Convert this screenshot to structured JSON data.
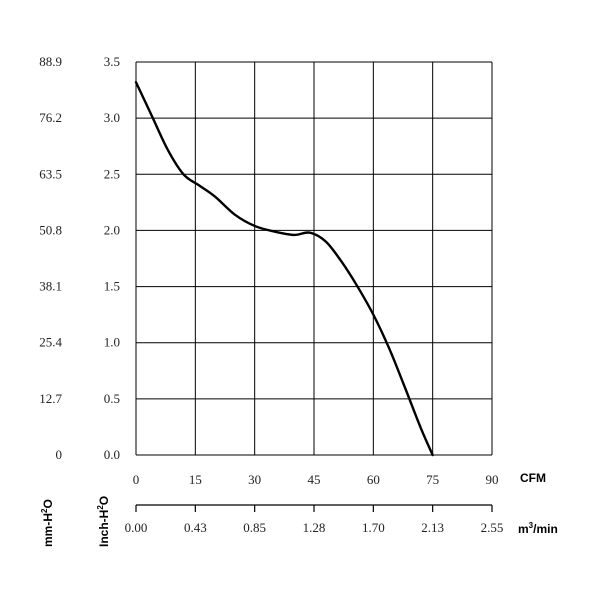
{
  "chart_data": {
    "type": "line",
    "title": "",
    "grid": true,
    "x_primary": {
      "label": "CFM",
      "ticks": [
        "0",
        "15",
        "30",
        "45",
        "60",
        "75",
        "90"
      ],
      "range": [
        0,
        90
      ]
    },
    "x_secondary": {
      "label_main": "m",
      "label_sup": "3",
      "label_tail": "/min",
      "ticks": [
        "0.00",
        "0.43",
        "0.85",
        "1.28",
        "1.70",
        "2.13",
        "2.55"
      ]
    },
    "y_primary": {
      "label_main": "Inch-H",
      "label_sup": "2",
      "label_tail": "O",
      "ticks": [
        "0.0",
        "0.5",
        "1.0",
        "1.5",
        "2.0",
        "2.5",
        "3.0",
        "3.5"
      ],
      "range": [
        0,
        3.5
      ]
    },
    "y_secondary": {
      "label_main": "mm-H",
      "label_sup": "2",
      "label_tail": "O",
      "ticks": [
        "0",
        "12.7",
        "25.4",
        "38.1",
        "50.8",
        "63.5",
        "76.2",
        "88.9"
      ]
    },
    "series": [
      {
        "x": [
          0,
          4,
          8,
          12,
          16,
          20,
          25,
          30,
          35,
          40,
          44,
          48,
          52,
          56,
          60,
          64,
          68,
          72,
          75
        ],
        "y": [
          3.32,
          3.02,
          2.72,
          2.5,
          2.4,
          2.3,
          2.14,
          2.04,
          1.99,
          1.96,
          1.98,
          1.9,
          1.72,
          1.5,
          1.25,
          0.95,
          0.6,
          0.24,
          0.0
        ]
      }
    ]
  }
}
